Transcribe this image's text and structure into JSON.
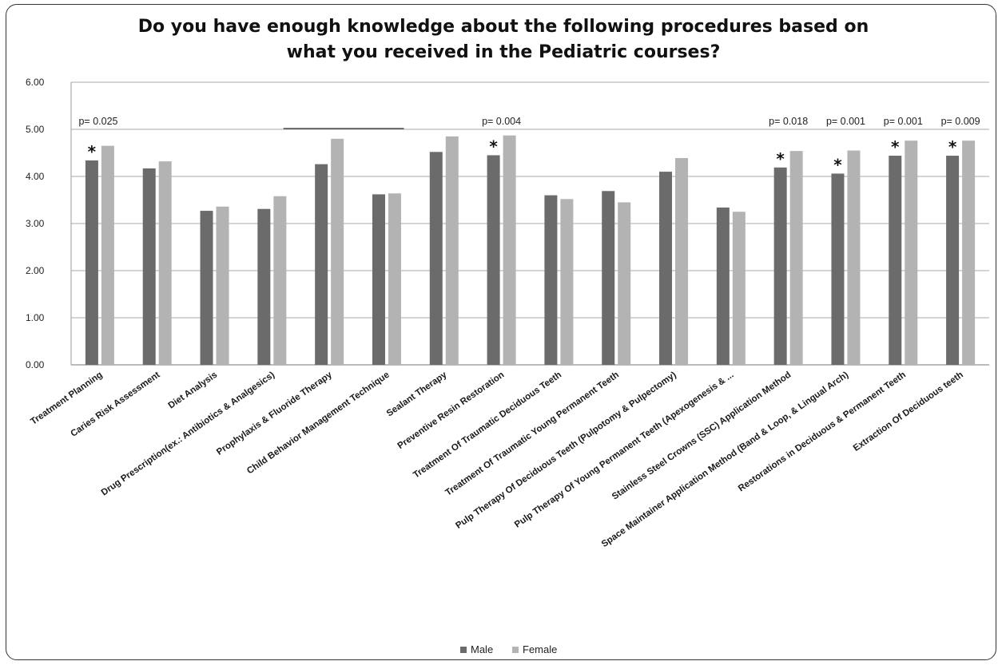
{
  "chart_data": {
    "type": "bar",
    "title": [
      "Do you have enough knowledge about the following procedures based on",
      "what you received in the Pediatric courses?"
    ],
    "xlabel": "",
    "ylabel": "",
    "ylim": [
      0,
      6
    ],
    "yticks": [
      "0.00",
      "1.00",
      "2.00",
      "3.00",
      "4.00",
      "5.00",
      "6.00"
    ],
    "grid": true,
    "legend_position": "bottom",
    "categories": [
      "Treatment Planning",
      "Caries Risk Assessment",
      "Diet Analysis",
      "Drug Prescription(ex.: Antibiotics & Analgesics)",
      "Prophylaxis & Fluoride Therapy",
      "Child Behavior Management Technique",
      "Sealant Therapy",
      "Preventive Resin Restoration",
      "Treatment Of Traumatic Deciduous Teeth",
      "Treatment Of Traumatic Young Permanent Teeth",
      "Pulp Therapy Of Deciduous Teeth (Pulpotomy & Pulpectomy)",
      "Pulp Therapy Of Young Permanent Teeth (Apexogenesis & ...",
      "Stainless Steel Crowns (SSC) Application Method",
      "Space Maintainer Application Method (Band & Loop, & Lingual Arch)",
      "Restorations in Deciduous & Permanent Teeth",
      "Extraction Of Deciduous teeth"
    ],
    "series": [
      {
        "name": "Male",
        "color": "#6b6b6b",
        "values": [
          4.34,
          4.17,
          3.27,
          3.31,
          4.26,
          3.62,
          4.52,
          4.45,
          3.6,
          3.69,
          4.1,
          3.34,
          4.19,
          4.06,
          4.44,
          4.44
        ]
      },
      {
        "name": "Female",
        "color": "#b3b3b3",
        "values": [
          4.65,
          4.32,
          3.36,
          3.58,
          4.8,
          3.64,
          4.85,
          4.87,
          3.52,
          3.45,
          4.39,
          3.25,
          4.54,
          4.55,
          4.76,
          4.76
        ]
      }
    ],
    "annotations": [
      {
        "category_index": 0,
        "p_label": "p= 0.025",
        "star": "*"
      },
      {
        "category_index": 7,
        "p_label": "p= 0.004",
        "star": "*"
      },
      {
        "category_index": 12,
        "p_label": "p= 0.018",
        "star": "*"
      },
      {
        "category_index": 13,
        "p_label": "p= 0.001",
        "star": "*"
      },
      {
        "category_index": 14,
        "p_label": "p= 0.001",
        "star": "*"
      },
      {
        "category_index": 15,
        "p_label": "p= 0.009",
        "star": "*"
      }
    ]
  }
}
